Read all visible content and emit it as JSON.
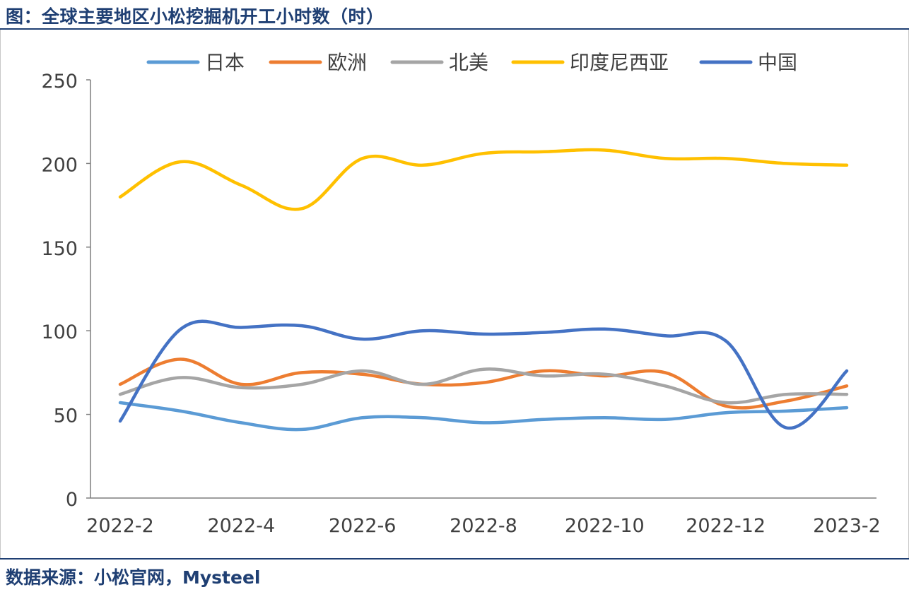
{
  "header": {
    "title": "图：全球主要地区小松挖掘机开工小时数（时）"
  },
  "footer": {
    "source": "数据来源：小松官网，Mysteel"
  },
  "chart_data": {
    "type": "line",
    "title": "全球主要地区小松挖掘机开工小时数（时）",
    "xlabel": "",
    "ylabel": "",
    "ylim": [
      0,
      250
    ],
    "yticks": [
      "0",
      "50",
      "100",
      "150",
      "200",
      "250"
    ],
    "x": [
      "2022-2",
      "2022-3",
      "2022-4",
      "2022-5",
      "2022-6",
      "2022-7",
      "2022-8",
      "2022-9",
      "2022-10",
      "2022-11",
      "2022-12",
      "2023-1",
      "2023-2"
    ],
    "xtick_labels": [
      "2022-2",
      "2022-4",
      "2022-6",
      "2022-8",
      "2022-10",
      "2022-12",
      "2023-2"
    ],
    "legend_position": "top",
    "grid": false,
    "series": [
      {
        "name": "日本",
        "color": "#5b9bd5",
        "values": [
          57,
          52,
          45,
          41,
          48,
          48,
          45,
          47,
          48,
          47,
          51,
          52,
          54
        ]
      },
      {
        "name": "欧洲",
        "color": "#ed7d31",
        "values": [
          68,
          83,
          68,
          75,
          74,
          68,
          69,
          76,
          73,
          75,
          55,
          58,
          67
        ]
      },
      {
        "name": "北美",
        "color": "#a5a5a5",
        "values": [
          62,
          72,
          66,
          68,
          76,
          68,
          77,
          73,
          74,
          67,
          57,
          62,
          62
        ]
      },
      {
        "name": "印度尼西亚",
        "color": "#ffc000",
        "values": [
          180,
          201,
          187,
          173,
          203,
          199,
          206,
          207,
          208,
          203,
          203,
          200,
          199
        ]
      },
      {
        "name": "中国",
        "color": "#4472c4",
        "values": [
          46,
          101,
          102,
          103,
          95,
          100,
          98,
          99,
          101,
          97,
          94,
          42,
          76
        ]
      }
    ]
  }
}
